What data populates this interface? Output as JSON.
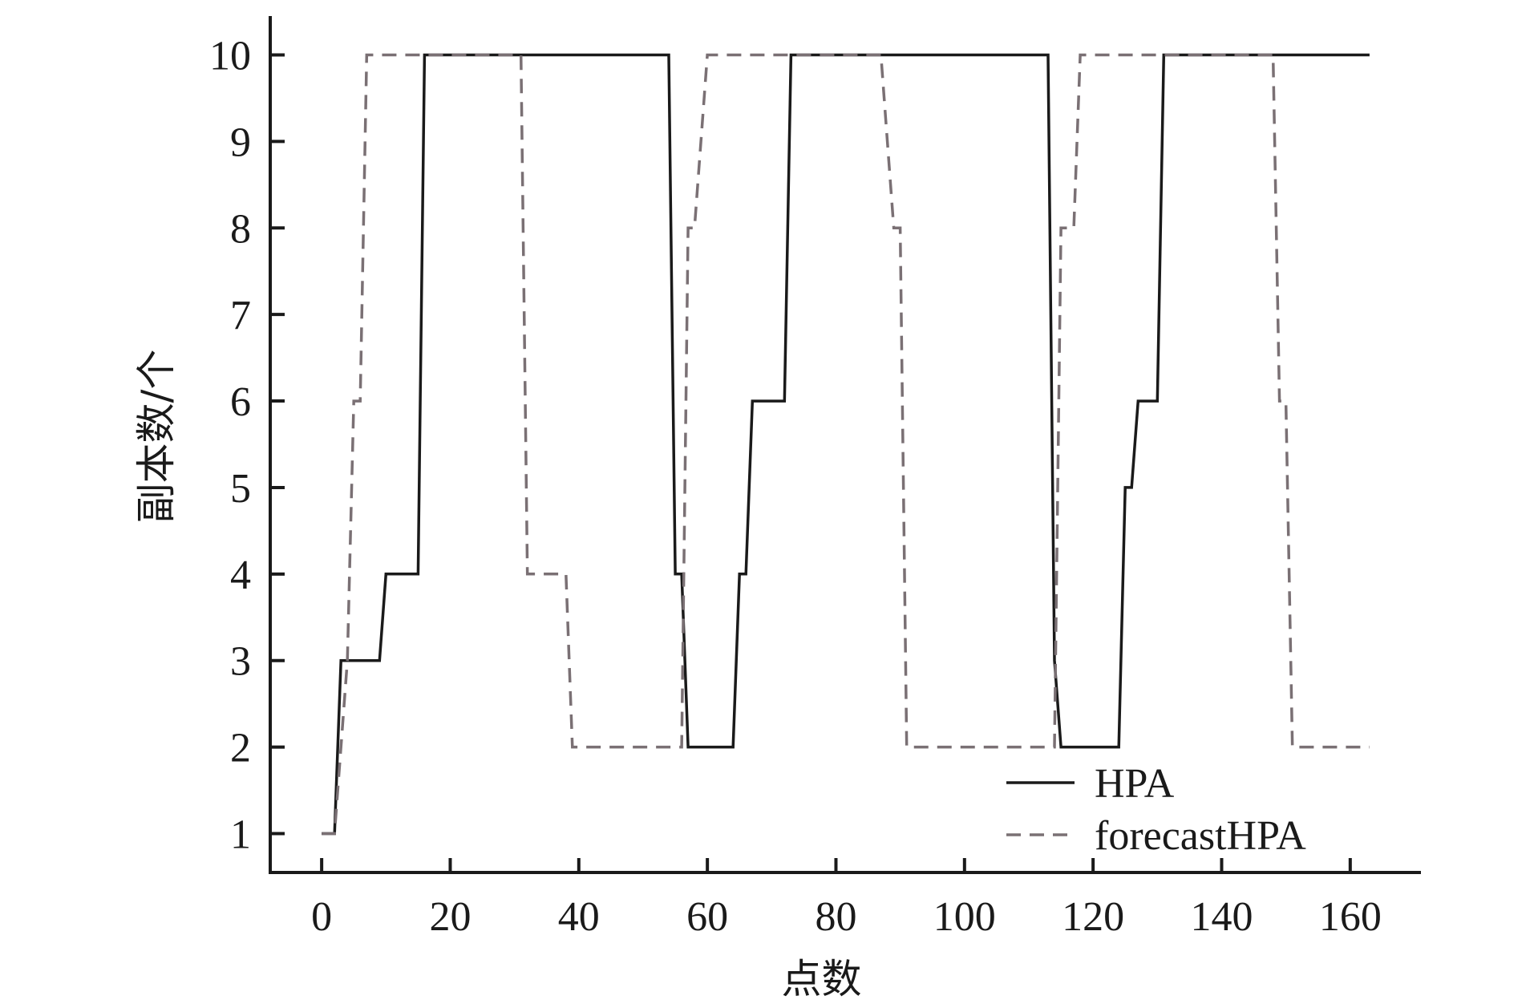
{
  "chart_data": {
    "type": "line",
    "xlabel": "点数",
    "ylabel": "副本数/个",
    "xlim": [
      -8,
      171
    ],
    "ylim": [
      0.55,
      10.45
    ],
    "xticks": [
      0,
      20,
      40,
      60,
      80,
      100,
      120,
      140,
      160
    ],
    "yticks": [
      1,
      2,
      3,
      4,
      5,
      6,
      7,
      8,
      9,
      10
    ],
    "grid": false,
    "legend_position": "bottom-right",
    "series": [
      {
        "name": "HPA",
        "style": "solid",
        "color": "#1a1a1a",
        "x": [
          0,
          2,
          3,
          9,
          10,
          15,
          16,
          54,
          55,
          56,
          57,
          64,
          65,
          66,
          67,
          72,
          73,
          113,
          114,
          115,
          124,
          125,
          126,
          127,
          130,
          131,
          163
        ],
        "y": [
          1,
          1,
          3,
          3,
          4,
          4,
          10,
          10,
          4,
          4,
          2,
          2,
          4,
          4,
          6,
          6,
          10,
          10,
          3,
          2,
          2,
          5,
          5,
          6,
          6,
          10,
          10
        ]
      },
      {
        "name": "forecastHPA",
        "style": "dashed",
        "color": "#7a7074",
        "x": [
          0,
          2,
          4,
          5,
          6,
          7,
          31,
          32,
          36,
          38,
          39,
          40,
          56,
          57,
          58,
          60,
          61,
          87,
          88,
          89,
          90,
          91,
          92,
          114,
          115,
          117,
          118,
          148,
          149,
          150,
          151,
          163
        ],
        "y": [
          1,
          1,
          3,
          6,
          6,
          10,
          10,
          4,
          4,
          4,
          2,
          2,
          2,
          8,
          8,
          10,
          10,
          10,
          9,
          8,
          8,
          2,
          2,
          2,
          8,
          8,
          10,
          10,
          6,
          6,
          2,
          2
        ]
      }
    ]
  }
}
